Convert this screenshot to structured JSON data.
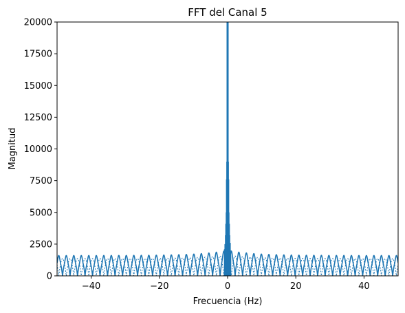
{
  "chart_data": {
    "type": "line",
    "title": "FFT del Canal 5",
    "xlabel": "Frecuencia (Hz)",
    "ylabel": "Magnitud",
    "xlim": [
      -50,
      50
    ],
    "ylim": [
      0,
      20000
    ],
    "xticks": [
      -40,
      -20,
      0,
      20,
      40
    ],
    "xtick_labels": [
      "−40",
      "−20",
      "0",
      "20",
      "40"
    ],
    "yticks": [
      0,
      2500,
      5000,
      7500,
      10000,
      12500,
      15000,
      17500,
      20000
    ],
    "ytick_labels": [
      "0",
      "2500",
      "5000",
      "7500",
      "10000",
      "12500",
      "15000",
      "17500",
      "20000"
    ],
    "grid": false,
    "series": [
      {
        "color": "#1f77b4",
        "description_of_shape": "lobes of ~1600 magnitude repeating every ~2.2 Hz across the band, rising to ~2000 near 0 Hz, with a central peak exceeding 20000 at 0 Hz",
        "peak": {
          "x": 0,
          "y": 20000
        },
        "side_lobe_level": 1600,
        "lobe_period": 2.2
      }
    ]
  }
}
